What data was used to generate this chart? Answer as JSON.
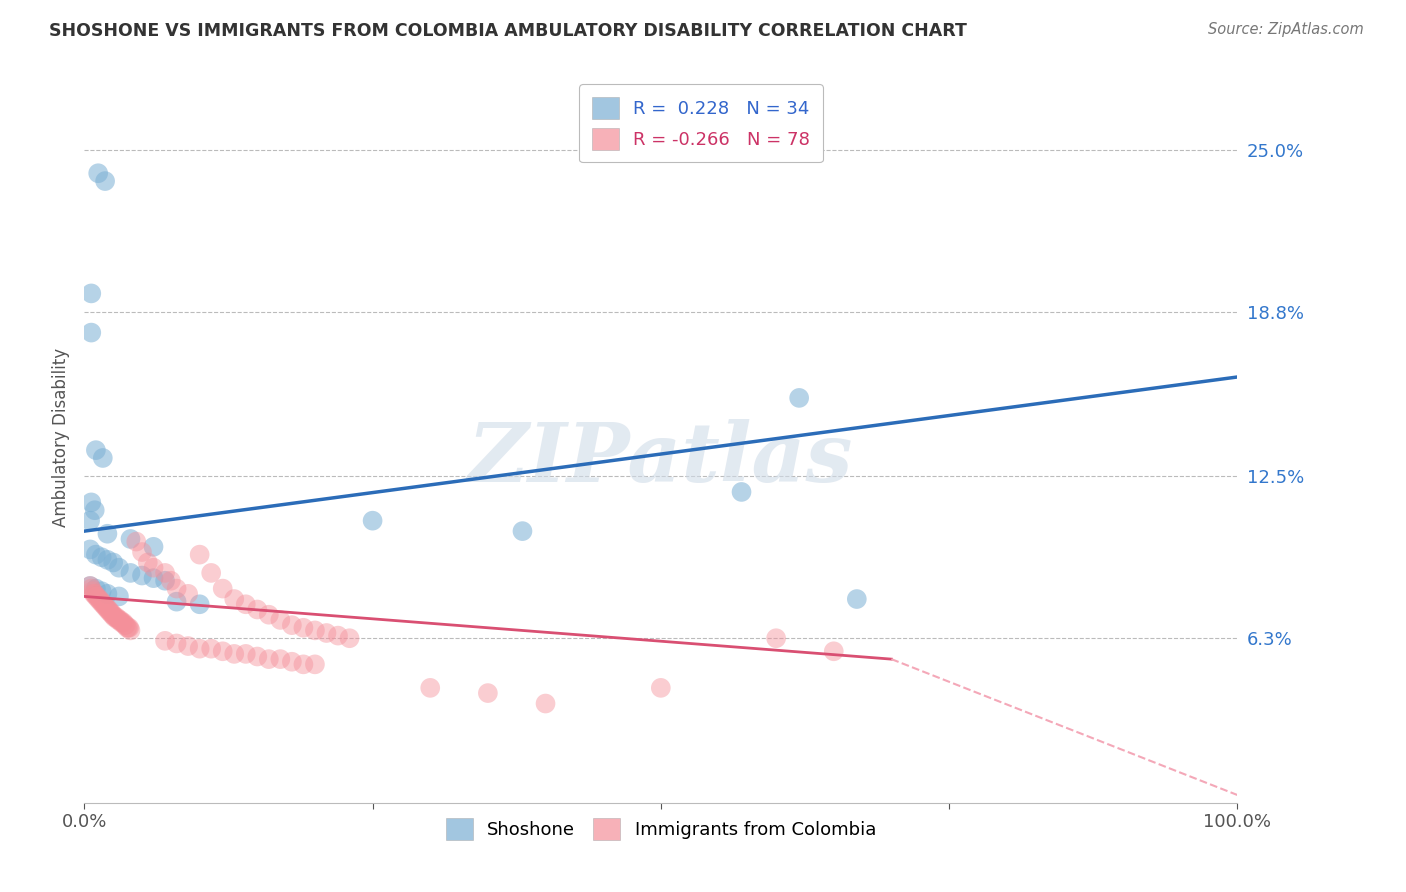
{
  "title": "SHOSHONE VS IMMIGRANTS FROM COLOMBIA AMBULATORY DISABILITY CORRELATION CHART",
  "source": "Source: ZipAtlas.com",
  "ylabel": "Ambulatory Disability",
  "xlim": [
    0,
    1.0
  ],
  "ylim": [
    0,
    0.28
  ],
  "yticks": [
    0.063,
    0.125,
    0.188,
    0.25
  ],
  "ytick_labels": [
    "6.3%",
    "12.5%",
    "18.8%",
    "25.0%"
  ],
  "xticks": [
    0.0,
    0.25,
    0.5,
    0.75,
    1.0
  ],
  "xtick_labels": [
    "0.0%",
    "",
    "",
    "",
    "100.0%"
  ],
  "watermark": "ZIPatlas",
  "legend_blue_R": "R =  0.228",
  "legend_blue_N": "N = 34",
  "legend_pink_R": "R = -0.266",
  "legend_pink_N": "N = 78",
  "blue_color": "#7BAFD4",
  "pink_color": "#F4909A",
  "blue_line_color": "#2B6CB8",
  "pink_line_color": "#D94F72",
  "pink_dash_color": "#F4A8B8",
  "shoshone_points": [
    [
      0.012,
      0.241
    ],
    [
      0.018,
      0.238
    ],
    [
      0.006,
      0.195
    ],
    [
      0.006,
      0.18
    ],
    [
      0.01,
      0.135
    ],
    [
      0.016,
      0.132
    ],
    [
      0.006,
      0.115
    ],
    [
      0.009,
      0.112
    ],
    [
      0.005,
      0.108
    ],
    [
      0.62,
      0.155
    ],
    [
      0.57,
      0.119
    ],
    [
      0.25,
      0.108
    ],
    [
      0.38,
      0.104
    ],
    [
      0.02,
      0.103
    ],
    [
      0.04,
      0.101
    ],
    [
      0.06,
      0.098
    ],
    [
      0.005,
      0.097
    ],
    [
      0.01,
      0.095
    ],
    [
      0.015,
      0.094
    ],
    [
      0.02,
      0.093
    ],
    [
      0.025,
      0.092
    ],
    [
      0.03,
      0.09
    ],
    [
      0.04,
      0.088
    ],
    [
      0.05,
      0.087
    ],
    [
      0.06,
      0.086
    ],
    [
      0.07,
      0.085
    ],
    [
      0.005,
      0.083
    ],
    [
      0.01,
      0.082
    ],
    [
      0.015,
      0.081
    ],
    [
      0.02,
      0.08
    ],
    [
      0.03,
      0.079
    ],
    [
      0.08,
      0.077
    ],
    [
      0.1,
      0.076
    ],
    [
      0.67,
      0.078
    ]
  ],
  "colombia_points": [
    [
      0.005,
      0.083
    ],
    [
      0.006,
      0.082
    ],
    [
      0.007,
      0.081
    ],
    [
      0.008,
      0.08
    ],
    [
      0.009,
      0.08
    ],
    [
      0.01,
      0.079
    ],
    [
      0.011,
      0.079
    ],
    [
      0.012,
      0.078
    ],
    [
      0.013,
      0.078
    ],
    [
      0.014,
      0.077
    ],
    [
      0.015,
      0.077
    ],
    [
      0.016,
      0.076
    ],
    [
      0.017,
      0.076
    ],
    [
      0.018,
      0.075
    ],
    [
      0.019,
      0.075
    ],
    [
      0.02,
      0.074
    ],
    [
      0.021,
      0.074
    ],
    [
      0.022,
      0.073
    ],
    [
      0.023,
      0.073
    ],
    [
      0.024,
      0.072
    ],
    [
      0.025,
      0.072
    ],
    [
      0.026,
      0.071
    ],
    [
      0.027,
      0.071
    ],
    [
      0.028,
      0.071
    ],
    [
      0.029,
      0.07
    ],
    [
      0.03,
      0.07
    ],
    [
      0.031,
      0.07
    ],
    [
      0.032,
      0.069
    ],
    [
      0.033,
      0.069
    ],
    [
      0.034,
      0.069
    ],
    [
      0.035,
      0.068
    ],
    [
      0.036,
      0.068
    ],
    [
      0.037,
      0.067
    ],
    [
      0.038,
      0.067
    ],
    [
      0.039,
      0.067
    ],
    [
      0.04,
      0.066
    ],
    [
      0.045,
      0.1
    ],
    [
      0.05,
      0.096
    ],
    [
      0.055,
      0.092
    ],
    [
      0.06,
      0.09
    ],
    [
      0.07,
      0.088
    ],
    [
      0.075,
      0.085
    ],
    [
      0.08,
      0.082
    ],
    [
      0.09,
      0.08
    ],
    [
      0.1,
      0.095
    ],
    [
      0.11,
      0.088
    ],
    [
      0.12,
      0.082
    ],
    [
      0.13,
      0.078
    ],
    [
      0.14,
      0.076
    ],
    [
      0.15,
      0.074
    ],
    [
      0.16,
      0.072
    ],
    [
      0.17,
      0.07
    ],
    [
      0.18,
      0.068
    ],
    [
      0.19,
      0.067
    ],
    [
      0.2,
      0.066
    ],
    [
      0.21,
      0.065
    ],
    [
      0.22,
      0.064
    ],
    [
      0.23,
      0.063
    ],
    [
      0.07,
      0.062
    ],
    [
      0.08,
      0.061
    ],
    [
      0.09,
      0.06
    ],
    [
      0.1,
      0.059
    ],
    [
      0.11,
      0.059
    ],
    [
      0.12,
      0.058
    ],
    [
      0.13,
      0.057
    ],
    [
      0.14,
      0.057
    ],
    [
      0.15,
      0.056
    ],
    [
      0.16,
      0.055
    ],
    [
      0.17,
      0.055
    ],
    [
      0.18,
      0.054
    ],
    [
      0.19,
      0.053
    ],
    [
      0.2,
      0.053
    ],
    [
      0.3,
      0.044
    ],
    [
      0.35,
      0.042
    ],
    [
      0.4,
      0.038
    ],
    [
      0.5,
      0.044
    ],
    [
      0.6,
      0.063
    ],
    [
      0.65,
      0.058
    ]
  ],
  "blue_line": {
    "x0": 0.0,
    "y0": 0.104,
    "x1": 1.0,
    "y1": 0.163
  },
  "pink_line_solid": {
    "x0": 0.0,
    "y0": 0.079,
    "x1": 0.7,
    "y1": 0.055
  },
  "pink_line_dash": {
    "x0": 0.7,
    "y0": 0.055,
    "x1": 1.0,
    "y1": 0.003
  }
}
